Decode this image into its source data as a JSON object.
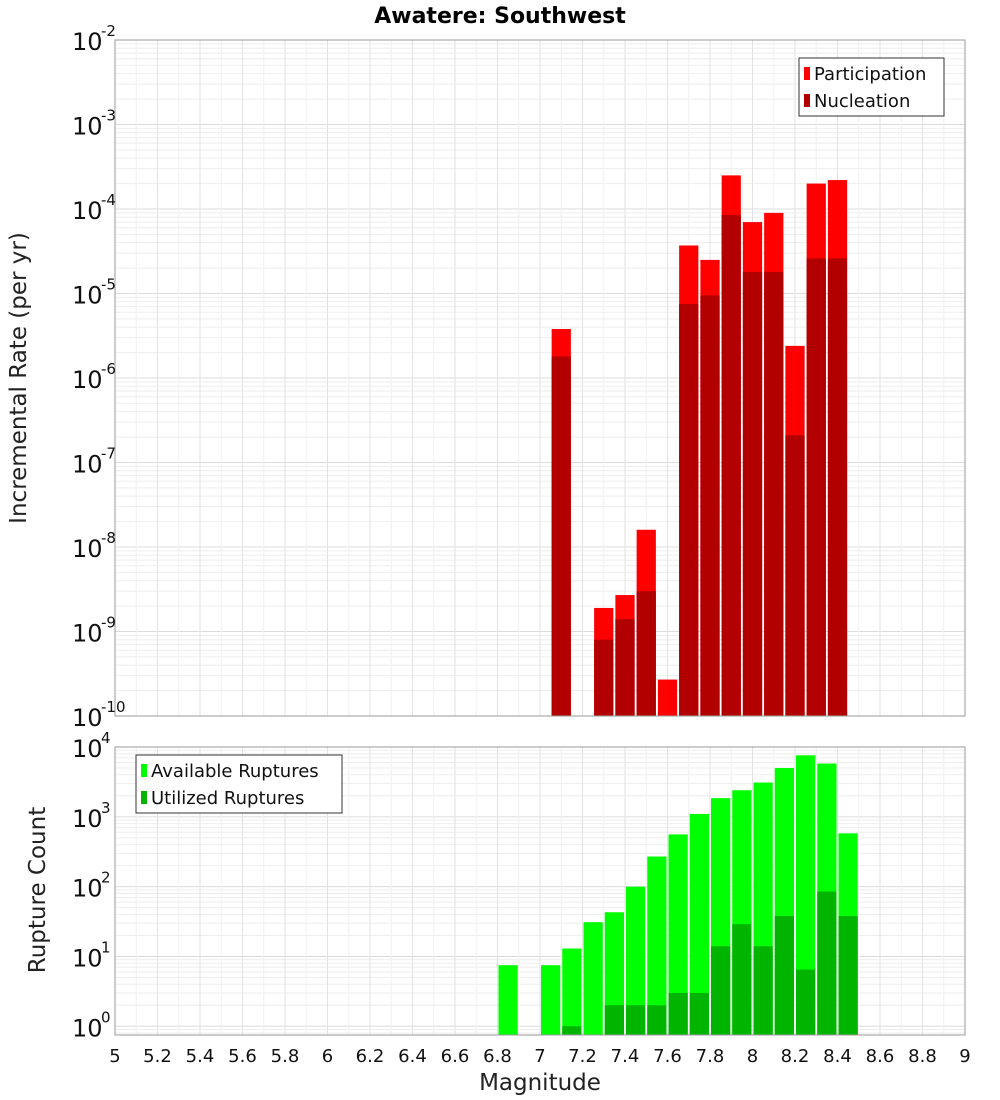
{
  "title": "Awatere: Southwest",
  "xlabel": "Magnitude",
  "x_ticks": [
    "5",
    "5.2",
    "5.4",
    "5.6",
    "5.8",
    "6",
    "6.2",
    "6.4",
    "6.6",
    "6.8",
    "7",
    "7.2",
    "7.4",
    "7.6",
    "7.8",
    "8",
    "8.2",
    "8.4",
    "8.6",
    "8.8",
    "9"
  ],
  "colors": {
    "participation": "#ff0000",
    "nucleation": "#b20000",
    "available": "#00ff00",
    "utilized": "#00b400"
  },
  "chart_data": [
    {
      "type": "bar",
      "ylabel": "Incremental Rate (per yr)",
      "yscale": "log",
      "ylim": [
        1e-10,
        0.01
      ],
      "xlim": [
        5,
        9
      ],
      "bin_width": 0.1,
      "legend_position": "top-right",
      "x": [
        7.1,
        7.3,
        7.4,
        7.5,
        7.6,
        7.7,
        7.8,
        7.9,
        8.0,
        8.1,
        8.2,
        8.3,
        8.4
      ],
      "series": [
        {
          "name": "Participation",
          "values": [
            3.8e-06,
            1.9e-09,
            2.7e-09,
            1.6e-08,
            2.7e-10,
            3.7e-05,
            2.5e-05,
            0.00025,
            7e-05,
            9e-05,
            2.4e-06,
            0.0002,
            0.00022
          ]
        },
        {
          "name": "Nucleation",
          "values": [
            1.8e-06,
            8e-10,
            1.4e-09,
            3e-09,
            null,
            7.5e-06,
            9.5e-06,
            8.5e-05,
            1.8e-05,
            1.8e-05,
            2.1e-07,
            2.6e-05,
            2.6e-05
          ]
        }
      ],
      "y_ticks": [
        {
          "base": "10",
          "exp": "-10"
        },
        {
          "base": "10",
          "exp": "-9"
        },
        {
          "base": "10",
          "exp": "-8"
        },
        {
          "base": "10",
          "exp": "-7"
        },
        {
          "base": "10",
          "exp": "-6"
        },
        {
          "base": "10",
          "exp": "-5"
        },
        {
          "base": "10",
          "exp": "-4"
        },
        {
          "base": "10",
          "exp": "-3"
        },
        {
          "base": "10",
          "exp": "-2"
        }
      ]
    },
    {
      "type": "bar",
      "ylabel": "Rupture Count",
      "yscale": "log",
      "ylim": [
        0.75,
        10000
      ],
      "xlim": [
        5,
        9
      ],
      "bin_width": 0.1,
      "legend_position": "top-left",
      "x": [
        6.85,
        7.05,
        7.15,
        7.25,
        7.35,
        7.45,
        7.55,
        7.65,
        7.75,
        7.85,
        7.95,
        8.05,
        8.15,
        8.25,
        8.35,
        8.45
      ],
      "series": [
        {
          "name": "Available Ruptures",
          "values": [
            7.5,
            7.5,
            13,
            31,
            43,
            100,
            270,
            560,
            1100,
            1850,
            2400,
            3100,
            5000,
            7600,
            5800,
            580
          ]
        },
        {
          "name": "Utilized Ruptures",
          "values": [
            null,
            null,
            1,
            null,
            2,
            2,
            2,
            3,
            3,
            14,
            29,
            14,
            38,
            6.5,
            85,
            38
          ]
        }
      ],
      "y_ticks": [
        {
          "base": "10",
          "exp": "0"
        },
        {
          "base": "10",
          "exp": "1"
        },
        {
          "base": "10",
          "exp": "2"
        },
        {
          "base": "10",
          "exp": "3"
        },
        {
          "base": "10",
          "exp": "4"
        }
      ]
    }
  ]
}
